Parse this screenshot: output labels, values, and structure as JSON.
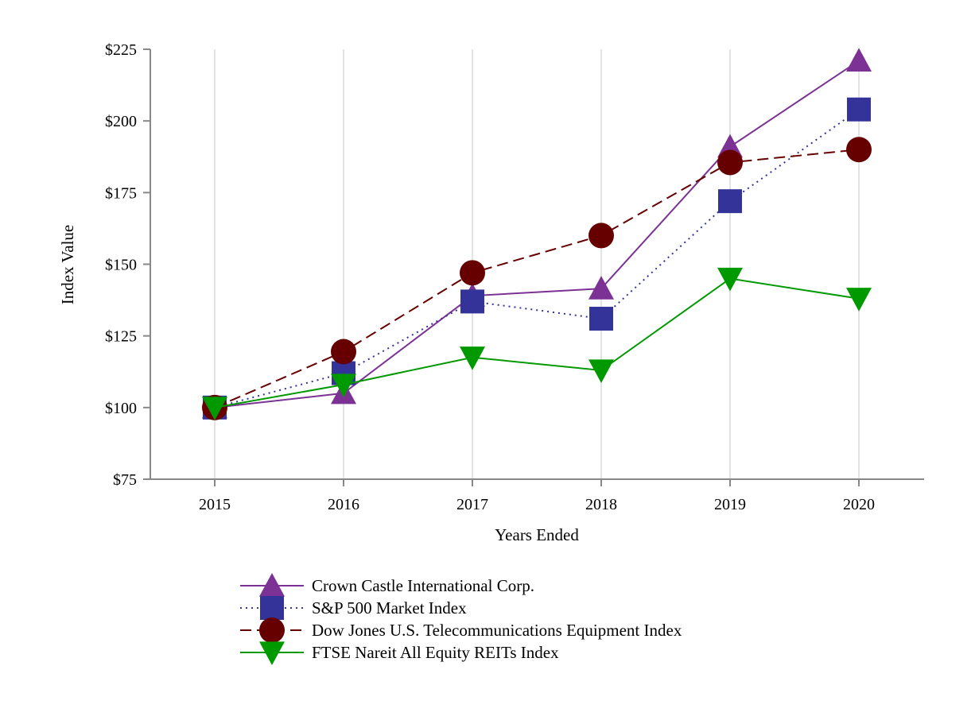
{
  "chart_data": {
    "type": "line",
    "title": "",
    "xlabel": "Years Ended",
    "ylabel": "Index Value",
    "categories": [
      "2015",
      "2016",
      "2017",
      "2018",
      "2019",
      "2020"
    ],
    "ylim": [
      75,
      225
    ],
    "yticks": [
      75,
      100,
      125,
      150,
      175,
      200,
      225
    ],
    "ytick_labels": [
      "$75",
      "$100",
      "$125",
      "$150",
      "$175",
      "$200",
      "$225"
    ],
    "grid": "vertical",
    "legend_position": "bottom",
    "series": [
      {
        "name": "Crown Castle International Corp.",
        "values": [
          100,
          105,
          139,
          141.5,
          191,
          221
        ],
        "color": "#7b3294",
        "marker": "triangle-up",
        "dash": "solid"
      },
      {
        "name": "S&P 500 Market Index",
        "values": [
          100,
          112,
          137,
          131,
          172,
          204
        ],
        "color": "#333399",
        "marker": "square",
        "dash": "dotted"
      },
      {
        "name": "Dow Jones U.S. Telecommunications Equipment Index",
        "values": [
          100,
          119.5,
          147,
          160,
          185.5,
          190
        ],
        "color": "#660000",
        "marker": "circle",
        "dash": "dashed"
      },
      {
        "name": "FTSE Nareit All Equity REITs Index",
        "values": [
          100,
          108,
          117.5,
          113,
          145,
          138
        ],
        "color": "#009900",
        "marker": "triangle-down",
        "dash": "solid"
      }
    ]
  }
}
